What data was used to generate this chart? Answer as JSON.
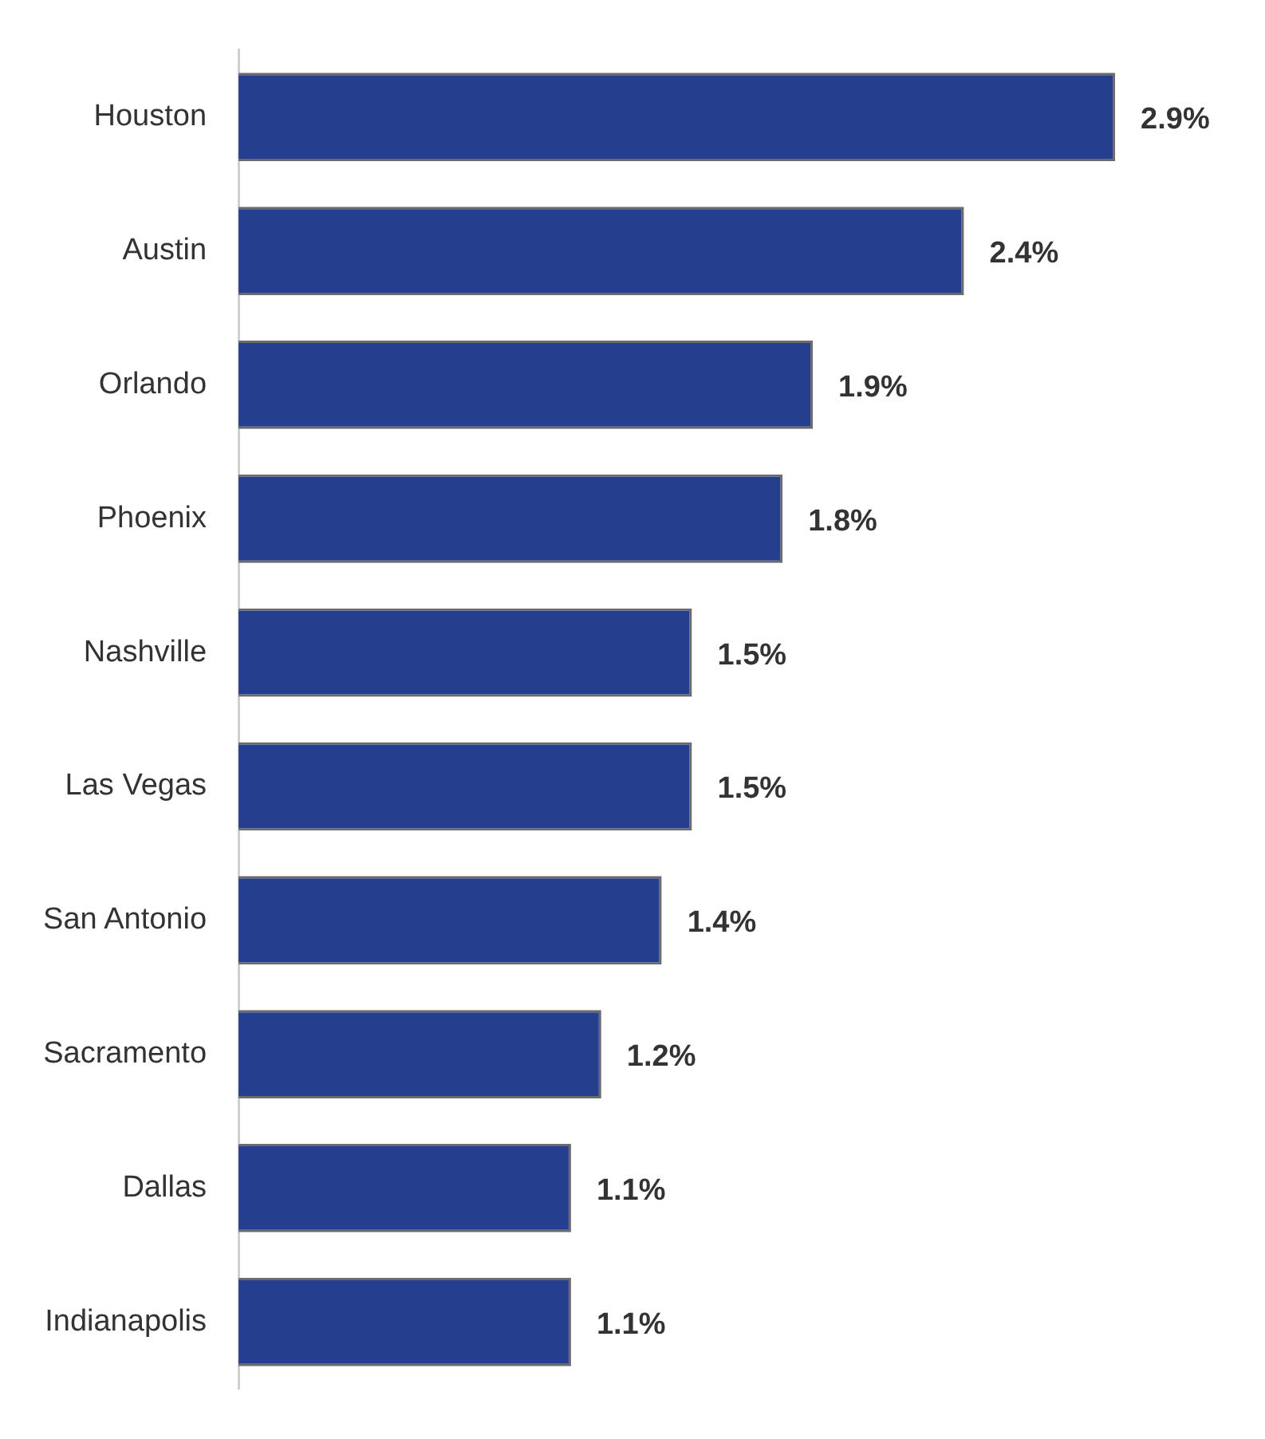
{
  "chart_data": {
    "type": "bar",
    "orientation": "horizontal",
    "categories": [
      "Houston",
      "Austin",
      "Orlando",
      "Phoenix",
      "Nashville",
      "Las Vegas",
      "San Antonio",
      "Sacramento",
      "Dallas",
      "Indianapolis"
    ],
    "values": [
      2.9,
      2.4,
      1.9,
      1.8,
      1.5,
      1.5,
      1.4,
      1.2,
      1.1,
      1.1
    ],
    "value_labels": [
      "2.9%",
      "2.4%",
      "1.9%",
      "1.8%",
      "1.5%",
      "1.5%",
      "1.4%",
      "1.2%",
      "1.1%",
      "1.1%"
    ],
    "color": "#253f8e"
  }
}
